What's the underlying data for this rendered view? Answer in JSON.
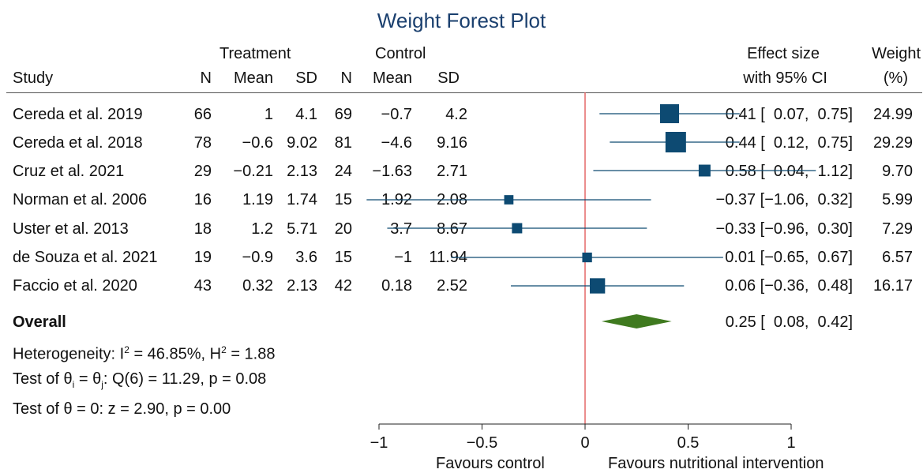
{
  "chart_data": {
    "type": "forest",
    "title": "Weight Forest Plot",
    "group_headers": {
      "treatment": "Treatment",
      "control": "Control"
    },
    "columns": {
      "study": "Study",
      "n": "N",
      "mean": "Mean",
      "sd": "SD",
      "effect_line1": "Effect size",
      "effect_line2": "with 95% CI",
      "weight_line1": "Weight",
      "weight_line2": "(%)"
    },
    "studies": [
      {
        "study": "Cereda et al. 2019",
        "t_n": "66",
        "t_mean": "1",
        "t_sd": "4.1",
        "c_n": "69",
        "c_mean": "−0.7",
        "c_sd": "4.2",
        "effect": 0.41,
        "lower": 0.07,
        "upper": 0.75,
        "ci_text": "0.41 [  0.07,  0.75]",
        "weight": 24.99,
        "weight_text": "24.99"
      },
      {
        "study": "Cereda et al. 2018",
        "t_n": "78",
        "t_mean": "−0.6",
        "t_sd": "9.02",
        "c_n": "81",
        "c_mean": "−4.6",
        "c_sd": "9.16",
        "effect": 0.44,
        "lower": 0.12,
        "upper": 0.75,
        "ci_text": "0.44 [  0.12,  0.75]",
        "weight": 29.29,
        "weight_text": "29.29"
      },
      {
        "study": "Cruz et al. 2021",
        "t_n": "29",
        "t_mean": "−0.21",
        "t_sd": "2.13",
        "c_n": "24",
        "c_mean": "−1.63",
        "c_sd": "2.71",
        "effect": 0.58,
        "lower": 0.04,
        "upper": 1.12,
        "ci_text": "0.58 [  0.04,  1.12]",
        "weight": 9.7,
        "weight_text": "9.70"
      },
      {
        "study": "Norman et al. 2006",
        "t_n": "16",
        "t_mean": "1.19",
        "t_sd": "1.74",
        "c_n": "15",
        "c_mean": "1.92",
        "c_sd": "2.08",
        "effect": -0.37,
        "lower": -1.06,
        "upper": 0.32,
        "ci_text": "−0.37 [−1.06,  0.32]",
        "weight": 5.99,
        "weight_text": "5.99"
      },
      {
        "study": "Uster et al. 2013",
        "t_n": "18",
        "t_mean": "1.2",
        "t_sd": "5.71",
        "c_n": "20",
        "c_mean": "3.7",
        "c_sd": "8.67",
        "effect": -0.33,
        "lower": -0.96,
        "upper": 0.3,
        "ci_text": "−0.33 [−0.96,  0.30]",
        "weight": 7.29,
        "weight_text": "7.29"
      },
      {
        "study": "de Souza et al. 2021",
        "t_n": "19",
        "t_mean": "−0.9",
        "t_sd": "3.6",
        "c_n": "15",
        "c_mean": "−1",
        "c_sd": "11.94",
        "effect": 0.01,
        "lower": -0.65,
        "upper": 0.67,
        "ci_text": "0.01 [−0.65,  0.67]",
        "weight": 6.57,
        "weight_text": "6.57"
      },
      {
        "study": "Faccio et al. 2020",
        "t_n": "43",
        "t_mean": "0.32",
        "t_sd": "2.13",
        "c_n": "42",
        "c_mean": "0.18",
        "c_sd": "2.52",
        "effect": 0.06,
        "lower": -0.36,
        "upper": 0.48,
        "ci_text": "0.06 [−0.36,  0.48]",
        "weight": 16.17,
        "weight_text": "16.17"
      }
    ],
    "overall": {
      "label": "Overall",
      "effect": 0.25,
      "lower": 0.08,
      "upper": 0.42,
      "ci_text": "0.25 [  0.08,  0.42]"
    },
    "heterogeneity": {
      "prefix": "Heterogeneity: I",
      "i2_sup": "2",
      "i2_value": " = 46.85%, H",
      "h2_sup": "2",
      "h2_value": " = 1.88"
    },
    "test_homogeneity": {
      "prefix": "Test of θ",
      "sub_i": "i",
      "mid": " = θ",
      "sub_j": "j",
      "suffix": ": Q(6) = 11.29, p = 0.08"
    },
    "test_effect": "Test of θ = 0: z = 2.90, p = 0.00",
    "x_axis": {
      "range": [
        -1,
        1
      ],
      "ticks": [
        -1,
        -0.5,
        0,
        0.5,
        1
      ],
      "tick_labels": [
        "−1",
        "−0.5",
        "0",
        "0.5",
        "1"
      ]
    },
    "favours_left": "Favours control",
    "favours_right": "Favours nutritional intervention",
    "colors": {
      "marker": "#0d4a72",
      "diamond": "#3f7a1f",
      "null_line": "#e05050",
      "title": "#1a3f6e"
    }
  }
}
